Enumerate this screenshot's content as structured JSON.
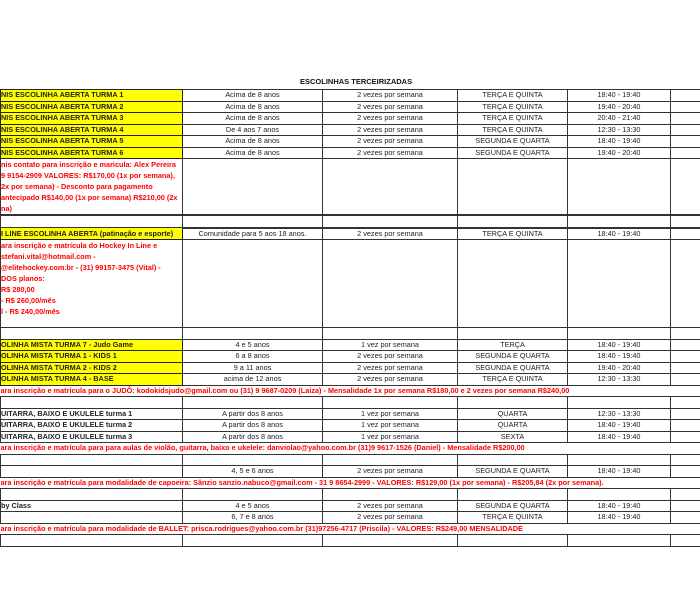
{
  "title": "ESCOLINHAS TERCEIRIZADAS",
  "rows": [
    {
      "type": "data",
      "yellow": true,
      "cells": [
        "NIS ESCOLINHA ABERTA TURMA 1",
        "Acima de 8 anos",
        "2 vezes por semana",
        "TERÇA E QUINTA",
        "18:40 - 19:40",
        ""
      ]
    },
    {
      "type": "data",
      "yellow": true,
      "cells": [
        "NIS ESCOLINHA ABERTA TURMA 2",
        "Acima de 8 anos",
        "2 vezes por semana",
        "TERÇA E QUINTA",
        "19:40 - 20:40",
        ""
      ]
    },
    {
      "type": "data",
      "yellow": true,
      "cells": [
        "NIS ESCOLINHA ABERTA TURMA 3",
        "Acima de 8 anos",
        "2 vezes por semana",
        "TERÇA E QUINTA",
        "20:40 - 21:40",
        ""
      ]
    },
    {
      "type": "data",
      "yellow": true,
      "cells": [
        "NIS ESCOLINHA ABERTA TURMA 4",
        "De 4 aos 7 anos",
        "2 vezes por semana",
        "TERÇA E QUINTA",
        "12:30 - 13:30",
        ""
      ]
    },
    {
      "type": "data",
      "yellow": true,
      "cells": [
        "NIS ESCOLINHA ABERTA TURMA 5",
        "Acima de 8 anos",
        "2 vezes por semana",
        "SEGUNDA E QUARTA",
        "18:40 - 19:40",
        ""
      ]
    },
    {
      "type": "data",
      "yellow": true,
      "cells": [
        "NIS ESCOLINHA ABERTA TURMA 6",
        "Acima de 8 anos",
        "2 vezes por semana",
        "SEGUNDA E QUARTA",
        "19:40 - 20:40",
        ""
      ]
    },
    {
      "type": "multi",
      "h": 54,
      "note": "nis contato para inscrição e maricula: Alex Pereira\n9 9154-2909 VALORES: R$170,00 (1x por semana),\n2x por semana) - Desconto para pagamento\nantecipado R$140,00 (1x por semana) R$210,00 (2x\nna)"
    },
    {
      "type": "empty",
      "sep": true
    },
    {
      "type": "data",
      "yellow": true,
      "sep": true,
      "cells": [
        "I LINE ESCOLINHA ABERTA (patinação e esporte)",
        "Comunidade para 5 aos 18 anos.",
        "2 vezes por semana",
        "TERÇA E QUINTA",
        "18:40 - 19:40",
        ""
      ]
    },
    {
      "type": "multi",
      "h": 87,
      "note": "ara inscrição e matrícula do Hockey In Line e\n stefani.vital@hotmail.com -\n@elitehockey.com.br - (31) 99157-3475 (Vital) -\nDOS planos:\nR$ 280,00\n- R$ 260,00/mês\nl - R$ 240,00/mês"
    },
    {
      "type": "empty"
    },
    {
      "type": "data",
      "yellow": true,
      "cells": [
        "OLINHA MISTA TURMA 7 - Judo Game",
        "4 e 5 anos",
        "1 vez por semana",
        "TERÇA",
        "18:40 - 19:40",
        ""
      ]
    },
    {
      "type": "data",
      "yellow": true,
      "cells": [
        "OLINHA MISTA TURMA 1 - KIDS 1",
        "6 a 8 anos",
        "2 vezes por semana",
        "SEGUNDA E QUARTA",
        "18:40 - 19:40",
        ""
      ]
    },
    {
      "type": "data",
      "yellow": true,
      "cells": [
        "OLINHA MISTA TURMA 2 - KIDS 2",
        "9 a 11 anos",
        "2 vezes por semana",
        "SEGUNDA E QUARTA",
        "19:40 - 20:40",
        ""
      ]
    },
    {
      "type": "data",
      "yellow": true,
      "cells": [
        "OLINHA MISTA TURMA 4 - BASE",
        "acima de 12 anos",
        "2 vezes por semana",
        "TERÇA E QUINTA",
        "12:30 - 13:30",
        ""
      ]
    },
    {
      "type": "single",
      "note": "ara inscrição e matrícula para o JUDÔ: kodokidsjudo@gmail.com ou (31) 9 9687-0209 (Laiza) - Mensalidade 1x por semana R$180,00 e 2 vezes por semana R$240,00"
    },
    {
      "type": "empty"
    },
    {
      "type": "data",
      "cells": [
        "UITARRA, BAIXO E UKULELE turma 1",
        "A partir dos 8 anos",
        "1 vez por semana",
        "QUARTA",
        "12:30 - 13:30",
        ""
      ]
    },
    {
      "type": "data",
      "cells": [
        "UITARRA, BAIXO E UKULELE turma 2",
        "A partir dos 8 anos",
        "1 vez por semana",
        "QUARTA",
        "18:40 - 19:40",
        ""
      ]
    },
    {
      "type": "data",
      "cells": [
        "UITARRA, BAIXO E UKULELE turma 3",
        "A partir dos 8 anos",
        "1 vez por semana",
        "SEXTA",
        "18:40 - 19:40",
        ""
      ]
    },
    {
      "type": "single",
      "note": "ara inscrição e matrícula para para aulas de violão, guitarra, baixo e ukelele: danviolao@yahoo.com.br (31)9 9617-1526 (Daniel) - Mensalidade R$200,00"
    },
    {
      "type": "empty"
    },
    {
      "type": "data",
      "cells": [
        "",
        "4, 5 e 6 anos",
        "2 vezes por semana",
        "SEGUNDA E QUARTA",
        "18:40 - 19:40",
        ""
      ]
    },
    {
      "type": "single",
      "note": "ara inscrição e matrícula para modalidade de capoeira: Sânzio sanzio.nabuco@gmail.com - 31 9 8654-2999 - VALORES: R$129,00 (1x por semana) - R$205,84 (2x por semana)."
    },
    {
      "type": "empty"
    },
    {
      "type": "data",
      "cells": [
        "by Class",
        "4 e 5 anos",
        "2 vezes por semana",
        "SEGUNDA E QUARTA",
        "18:40 - 19:40",
        ""
      ]
    },
    {
      "type": "data",
      "cells": [
        "",
        "6, 7 e 8 anos",
        "2 vezes por semana",
        "TERÇA E QUINTA",
        "18:40 - 19:40",
        ""
      ]
    },
    {
      "type": "single",
      "note": "ara inscrição e matrícula para modalidade de BALLET: prisca.rodrigues@yahoo.com.br (31)97256-4717 (Priscila) - VALORES: R$249,00 MENSALIDADE"
    },
    {
      "type": "empty"
    }
  ],
  "colors": {
    "highlight": "#ffff00",
    "note_text": "#ff0000",
    "border": "#333333"
  }
}
